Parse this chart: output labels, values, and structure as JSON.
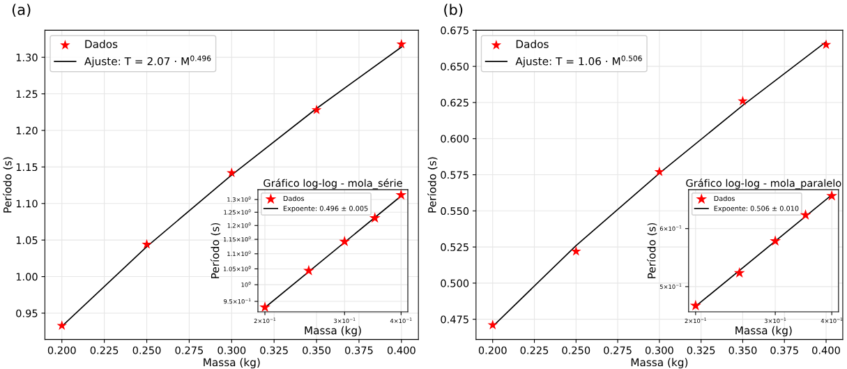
{
  "chart_data": [
    {
      "type": "scatter",
      "annotations": [
        "(a)"
      ],
      "xlabel": "Massa (kg)",
      "ylabel": "Período (s)",
      "xlim": [
        0.19,
        0.41
      ],
      "ylim": [
        0.914,
        1.337
      ],
      "xticks": [
        {
          "value": 0.2,
          "label": "0.200"
        },
        0.225,
        {
          "value": 0.25,
          "label": "0.250"
        },
        0.275,
        {
          "value": 0.3,
          "label": "0.300"
        },
        0.325,
        {
          "value": 0.35,
          "label": "0.350"
        },
        0.375,
        {
          "value": 0.4,
          "label": "0.400"
        }
      ],
      "yticks": [
        0.95,
        {
          "value": 1.0,
          "label": "1.00"
        },
        1.05,
        {
          "value": 1.1,
          "label": "1.10"
        },
        1.15,
        {
          "value": 1.2,
          "label": "1.20"
        },
        1.25,
        {
          "value": 1.3,
          "label": "1.30"
        }
      ],
      "grid": true,
      "legend": "top left",
      "series": [
        {
          "name": "Dados",
          "marker": "star",
          "color": "#ff0000",
          "x": [
            0.2,
            0.25,
            0.3,
            0.35,
            0.4
          ],
          "values": [
            0.933,
            1.044,
            1.142,
            1.228,
            1.318
          ]
        },
        {
          "name": "Ajuste: T = 2.07 · M$^{0.496}$",
          "type": "line",
          "line_style": "solid",
          "color": "#000000",
          "x": [
            0.2,
            0.25,
            0.3,
            0.35,
            0.4
          ],
          "values": [
            0.932,
            1.041,
            1.139,
            1.23,
            1.314
          ]
        }
      ]
    },
    {
      "type": "scatter",
      "title": "Gráfico log-log - mola_série",
      "xlabel": "Massa (kg)",
      "ylabel": "Período (s)",
      "log": "xy",
      "xlim": [
        0.193,
        0.414
      ],
      "ylim": [
        0.92,
        1.34
      ],
      "xticks": [
        {
          "value": 0.2,
          "label": "2×10$^{−1}$"
        },
        {
          "value": 0.3,
          "label": "3×10$^{−1}$"
        },
        {
          "value": 0.4,
          "label": "4×10$^{−1}$"
        }
      ],
      "yticks": [
        {
          "value": 0.95,
          "label": "9.5×10$^{−1}$"
        },
        {
          "value": 1.0,
          "label": "10$^{0}$"
        },
        {
          "value": 1.05,
          "label": "1.05×10$^{0}$"
        },
        {
          "value": 1.1,
          "label": "1.1×10$^{0}$"
        },
        {
          "value": 1.15,
          "label": "1.15×10$^{0}$"
        },
        {
          "value": 1.2,
          "label": "1.2×10$^{0}$"
        },
        {
          "value": 1.25,
          "label": "1.25×10$^{0}$"
        },
        {
          "value": 1.3,
          "label": "1.3×10$^{0}$"
        }
      ],
      "grid": true,
      "legend": "top left",
      "series": [
        {
          "name": "Dados",
          "marker": "star",
          "color": "#ff0000",
          "x": [
            0.2,
            0.25,
            0.3,
            0.35,
            0.4
          ],
          "values": [
            0.933,
            1.044,
            1.142,
            1.228,
            1.318
          ]
        },
        {
          "name": "Expoente: 0.496 ± 0.005",
          "type": "line",
          "line_style": "solid",
          "color": "#000000",
          "x": [
            0.2,
            0.4
          ],
          "values": [
            0.932,
            1.314
          ]
        }
      ]
    },
    {
      "type": "scatter",
      "annotations": [
        "(b)"
      ],
      "xlabel": "Massa (kg)",
      "ylabel": "Período (s)",
      "xlim": [
        0.19,
        0.41
      ],
      "ylim": [
        0.461,
        0.675
      ],
      "xticks": [
        {
          "value": 0.2,
          "label": "0.200"
        },
        0.225,
        {
          "value": 0.25,
          "label": "0.250"
        },
        0.275,
        {
          "value": 0.3,
          "label": "0.300"
        },
        0.325,
        {
          "value": 0.35,
          "label": "0.350"
        },
        0.375,
        {
          "value": 0.4,
          "label": "0.400"
        }
      ],
      "yticks": [
        0.475,
        {
          "value": 0.5,
          "label": "0.500"
        },
        0.525,
        {
          "value": 0.55,
          "label": "0.550"
        },
        0.575,
        {
          "value": 0.6,
          "label": "0.600"
        },
        0.625,
        {
          "value": 0.65,
          "label": "0.650"
        },
        0.675
      ],
      "grid": true,
      "legend": "top left",
      "series": [
        {
          "name": "Dados",
          "marker": "star",
          "color": "#ff0000",
          "x": [
            0.2,
            0.25,
            0.3,
            0.35,
            0.4
          ],
          "values": [
            0.471,
            0.522,
            0.577,
            0.626,
            0.665
          ]
        },
        {
          "name": "Ajuste: T = 1.06 · M$^{0.506}$",
          "type": "line",
          "line_style": "solid",
          "color": "#000000",
          "x": [
            0.2,
            0.25,
            0.3,
            0.35,
            0.4
          ],
          "values": [
            0.47,
            0.526,
            0.576,
            0.623,
            0.667
          ]
        }
      ]
    },
    {
      "type": "scatter",
      "title": "Gráfico log-log - mola_paralelo",
      "xlabel": "Massa (kg)",
      "ylabel": "Período (s)",
      "log": "xy",
      "xlim": [
        0.193,
        0.414
      ],
      "ylim": [
        0.462,
        0.678
      ],
      "xticks": [
        {
          "value": 0.2,
          "label": "2×10$^{−1}$"
        },
        {
          "value": 0.3,
          "label": "3×10$^{−1}$"
        },
        {
          "value": 0.4,
          "label": "4×10$^{−1}$"
        }
      ],
      "yticks": [
        {
          "value": 0.5,
          "label": "5×10$^{−1}$"
        },
        {
          "value": 0.6,
          "label": "6×10$^{−1}$"
        }
      ],
      "grid": true,
      "legend": "top left",
      "series": [
        {
          "name": "Dados",
          "marker": "star",
          "color": "#ff0000",
          "x": [
            0.2,
            0.25,
            0.3,
            0.35,
            0.4
          ],
          "values": [
            0.471,
            0.522,
            0.577,
            0.626,
            0.665
          ]
        },
        {
          "name": "Expoente: 0.506 ± 0.010",
          "type": "line",
          "line_style": "solid",
          "color": "#000000",
          "x": [
            0.2,
            0.4
          ],
          "values": [
            0.47,
            0.667
          ]
        }
      ]
    }
  ]
}
